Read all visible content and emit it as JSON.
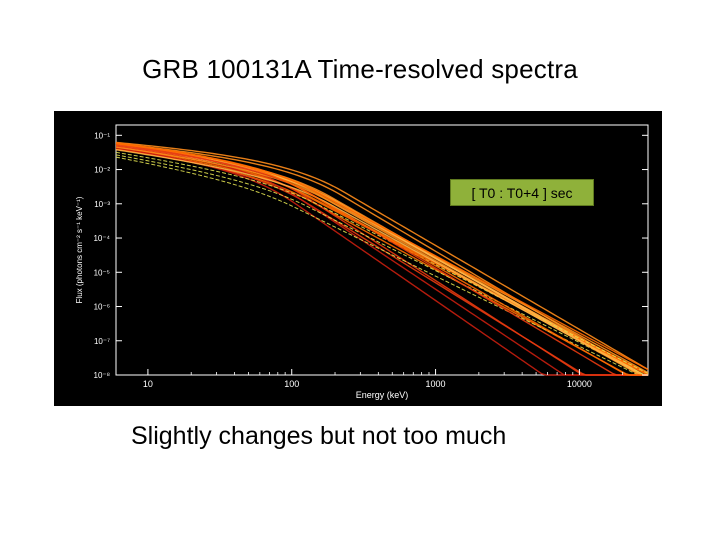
{
  "slide": {
    "title": "GRB 100131A Time-resolved spectra",
    "annotation": "[ T0  :  T0+4 ] sec",
    "caption": "Slightly changes but not too much"
  },
  "chart_data": {
    "type": "line",
    "title": "",
    "xlabel": "Energy (keV)",
    "ylabel": "Flux (photons cm⁻² s⁻¹ keV⁻¹)",
    "xscale": "log",
    "yscale": "log",
    "xlim": [
      6,
      30000
    ],
    "ylim": [
      1e-08,
      0.2
    ],
    "x_ticks": [
      10,
      100,
      1000,
      10000
    ],
    "x_tick_labels": [
      "10",
      "100",
      "1000",
      "10000"
    ],
    "y_ticks": [
      0.1,
      0.01,
      0.001,
      0.0001,
      1e-05,
      1e-06,
      1e-07,
      1e-08
    ],
    "y_tick_labels": [
      "10⁻¹",
      "10⁻²",
      "10⁻³",
      "10⁻⁴",
      "10⁻⁵",
      "10⁻⁶",
      "10⁻⁷",
      "10⁻⁸"
    ],
    "grid": false,
    "background": "#000000",
    "series_colors": [
      "#ff8c1a",
      "#ff6a00",
      "#e83a10",
      "#c81e0e",
      "#ffb347",
      "#e0e050"
    ],
    "series": [
      {
        "alpha": -0.45,
        "epeak": 130,
        "beta": -2.3,
        "y_at_10": 0.035,
        "color": "#ff8c1a"
      },
      {
        "alpha": -0.5,
        "epeak": 150,
        "beta": -2.4,
        "y_at_10": 0.04,
        "color": "#ff8c1a"
      },
      {
        "alpha": -0.55,
        "epeak": 120,
        "beta": -2.2,
        "y_at_10": 0.03,
        "color": "#ff6a00"
      },
      {
        "alpha": -0.4,
        "epeak": 170,
        "beta": -2.5,
        "y_at_10": 0.045,
        "color": "#ff8c1a"
      },
      {
        "alpha": -0.6,
        "epeak": 110,
        "beta": -2.3,
        "y_at_10": 0.028,
        "color": "#ff6a00"
      },
      {
        "alpha": -0.5,
        "epeak": 140,
        "beta": -2.35,
        "y_at_10": 0.038,
        "color": "#ffb347"
      },
      {
        "alpha": -0.35,
        "epeak": 180,
        "beta": -2.45,
        "y_at_10": 0.05,
        "color": "#ff8c1a"
      },
      {
        "alpha": -0.45,
        "epeak": 100,
        "beta": -2.2,
        "y_at_10": 0.032,
        "color": "#ff6a00"
      },
      {
        "alpha": -0.55,
        "epeak": 160,
        "beta": -2.4,
        "y_at_10": 0.036,
        "color": "#ffb347"
      },
      {
        "alpha": -0.5,
        "epeak": 135,
        "beta": -2.3,
        "y_at_10": 0.042,
        "color": "#ff8c1a"
      },
      {
        "alpha": -0.6,
        "epeak": 90,
        "beta": -2.6,
        "y_at_10": 0.03,
        "color": "#e83a10"
      },
      {
        "alpha": -0.4,
        "epeak": 75,
        "beta": -2.8,
        "y_at_10": 0.034,
        "color": "#c81e0e"
      },
      {
        "alpha": -0.5,
        "epeak": 65,
        "beta": -2.9,
        "y_at_10": 0.03,
        "color": "#c81e0e"
      },
      {
        "alpha": -0.45,
        "epeak": 85,
        "beta": -2.7,
        "y_at_10": 0.04,
        "color": "#e83a10"
      },
      {
        "alpha": -0.7,
        "epeak": 120,
        "beta": -2.1,
        "y_at_10": 0.018,
        "color": "#e0e050"
      },
      {
        "alpha": -0.75,
        "epeak": 100,
        "beta": -2.05,
        "y_at_10": 0.015,
        "color": "#e0e050"
      },
      {
        "alpha": -0.65,
        "epeak": 140,
        "beta": -2.15,
        "y_at_10": 0.022,
        "color": "#e0e050"
      },
      {
        "alpha": -0.5,
        "epeak": 125,
        "beta": -2.25,
        "y_at_10": 0.045,
        "color": "#ff6a00"
      },
      {
        "alpha": -0.55,
        "epeak": 145,
        "beta": -2.35,
        "y_at_10": 0.033,
        "color": "#ff8c1a"
      },
      {
        "alpha": -0.45,
        "epeak": 110,
        "beta": -2.5,
        "y_at_10": 0.037,
        "color": "#e83a10"
      },
      {
        "alpha": -0.6,
        "epeak": 155,
        "beta": -2.3,
        "y_at_10": 0.027,
        "color": "#ffb347"
      },
      {
        "alpha": -0.4,
        "epeak": 95,
        "beta": -2.4,
        "y_at_10": 0.043,
        "color": "#ff6a00"
      }
    ]
  }
}
